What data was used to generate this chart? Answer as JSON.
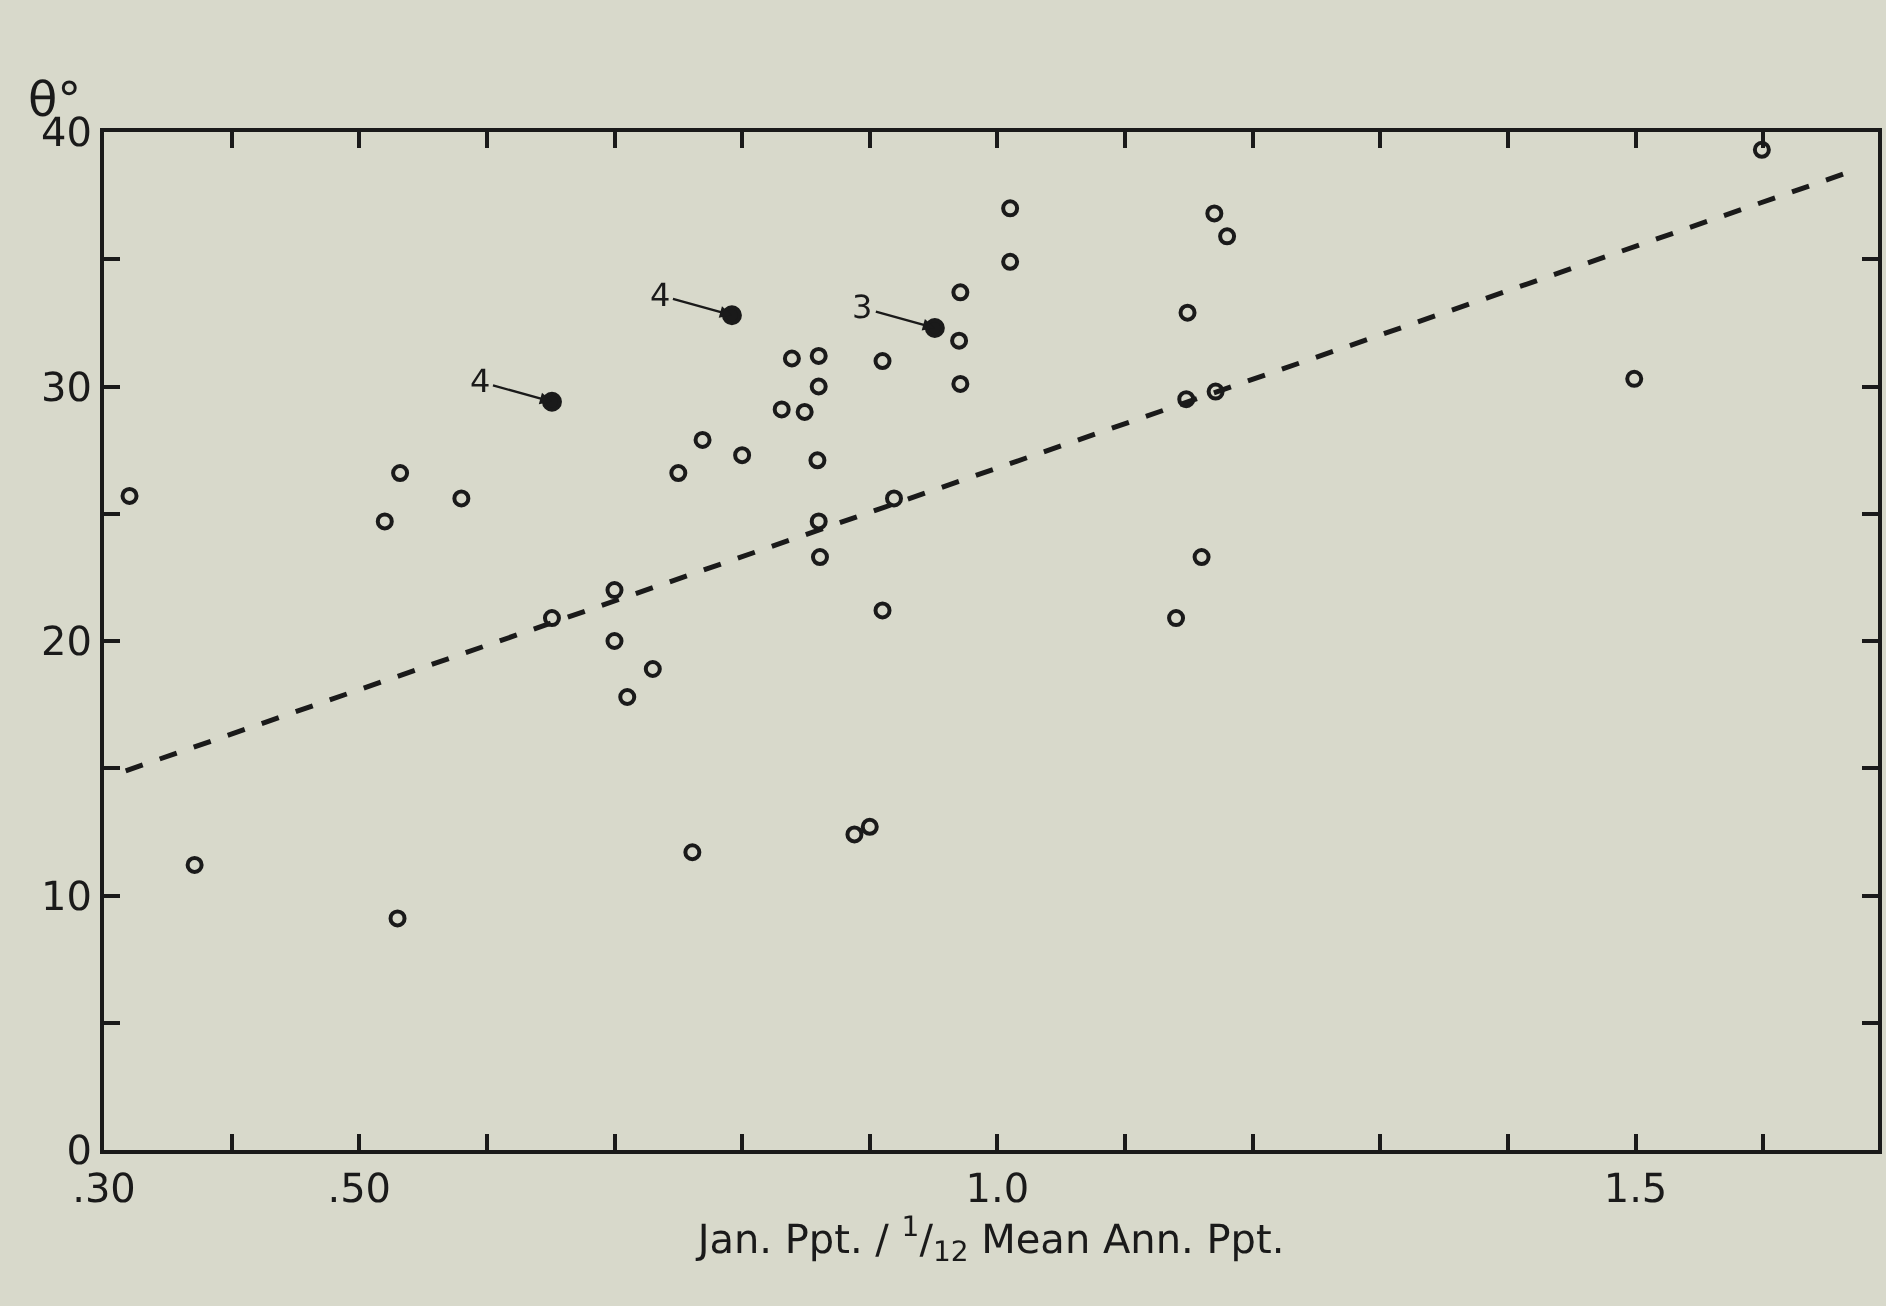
{
  "chart_data": {
    "type": "scatter",
    "xlabel": "Jan. Ppt. / $^{1}$/$_{12}$ Mean Ann. Ppt.",
    "ylabel": "θ°",
    "xlim": [
      0.3,
      1.69
    ],
    "ylim": [
      0,
      40
    ],
    "xticks": [
      {
        "value": 0.3,
        "label": ".30"
      },
      {
        "value": 0.4,
        "label": null
      },
      {
        "value": 0.5,
        "label": ".50"
      },
      {
        "value": 0.6,
        "label": null
      },
      {
        "value": 0.7,
        "label": null
      },
      {
        "value": 0.8,
        "label": null
      },
      {
        "value": 0.9,
        "label": null
      },
      {
        "value": 1.0,
        "label": "1.0"
      },
      {
        "value": 1.1,
        "label": null
      },
      {
        "value": 1.2,
        "label": null
      },
      {
        "value": 1.3,
        "label": null
      },
      {
        "value": 1.4,
        "label": null
      },
      {
        "value": 1.5,
        "label": "1.5"
      },
      {
        "value": 1.6,
        "label": null
      }
    ],
    "yticks": [
      0,
      {
        "value": 5,
        "label": null
      },
      10,
      {
        "value": 15,
        "label": null
      },
      20,
      {
        "value": 25,
        "label": null
      },
      30,
      {
        "value": 35,
        "label": null
      },
      40
    ],
    "grid": false,
    "series": [
      {
        "color": "#1a1a1a",
        "marker": "circle",
        "x": [
          0.32,
          0.371,
          0.52,
          0.532,
          0.58,
          0.53,
          0.651,
          0.7,
          0.7,
          0.71,
          0.73,
          0.75,
          0.769,
          0.8,
          0.761,
          0.839,
          0.86,
          0.86,
          0.831,
          0.849,
          0.859,
          0.86,
          0.861,
          0.91,
          0.919,
          0.91,
          0.888,
          0.9,
          0.971,
          0.97,
          0.971,
          1.01,
          1.01,
          1.17,
          1.18,
          1.149,
          1.148,
          1.171,
          1.16,
          1.14,
          1.499,
          1.599
        ],
        "values": [
          25.7,
          11.2,
          24.7,
          26.6,
          25.6,
          9.1,
          20.9,
          22.0,
          20.0,
          17.8,
          18.9,
          26.6,
          27.9,
          27.3,
          11.7,
          31.1,
          31.2,
          30.0,
          29.1,
          29.0,
          27.1,
          24.7,
          23.3,
          31.0,
          25.6,
          21.2,
          12.4,
          12.7,
          33.7,
          31.8,
          30.1,
          37.0,
          34.9,
          36.8,
          35.9,
          32.9,
          29.5,
          29.8,
          23.3,
          20.9,
          30.3,
          39.3
        ]
      },
      {
        "color": "#1a1a1a",
        "marker": "circle",
        "x": [
          0.651,
          0.792,
          0.951
        ],
        "values": [
          29.4,
          32.8,
          32.3
        ]
      },
      {
        "type": "line",
        "color": "#1a1a1a",
        "line_style": "dashed",
        "x": [
          0.317,
          1.666
        ],
        "values": [
          14.9,
          38.4
        ]
      }
    ],
    "annotations": [
      {
        "text": "4",
        "x": 0.651,
        "y": 29.4
      },
      {
        "text": "4",
        "x": 0.792,
        "y": 32.8
      },
      {
        "text": "3",
        "x": 0.951,
        "y": 32.3
      }
    ]
  }
}
